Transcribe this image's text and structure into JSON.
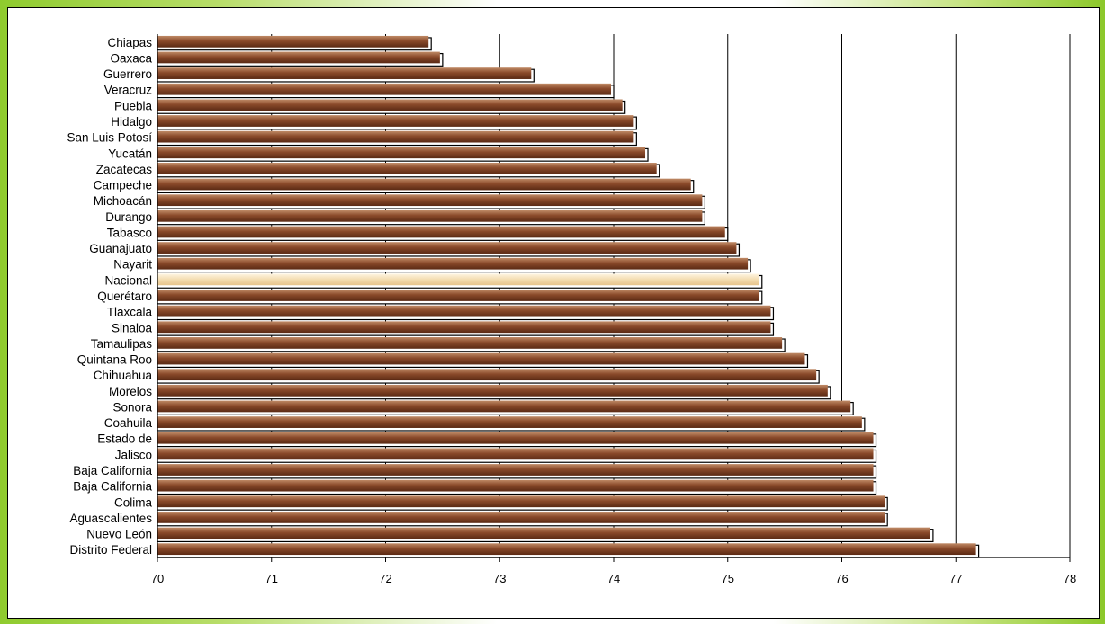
{
  "chart_data": {
    "type": "bar",
    "orientation": "horizontal",
    "title": "",
    "xlabel": "",
    "ylabel": "",
    "xlim": [
      70,
      78
    ],
    "xticks": [
      70,
      71,
      72,
      73,
      74,
      75,
      76,
      77,
      78
    ],
    "grid": "vertical",
    "legend": "none",
    "categories": [
      "Chiapas",
      "Oaxaca",
      "Guerrero",
      "Veracruz",
      "Puebla",
      "Hidalgo",
      "San Luis Potosí",
      "Yucatán",
      "Zacatecas",
      "Campeche",
      "Michoacán",
      "Durango",
      "Tabasco",
      "Guanajuato",
      "Nayarit",
      "Nacional",
      "Querétaro",
      "Tlaxcala",
      "Sinaloa",
      "Tamaulipas",
      "Quintana Roo",
      "Chihuahua",
      "Morelos",
      "Sonora",
      "Coahuila",
      "Estado de",
      "Jalisco",
      "Baja California",
      "Baja California",
      "Colima",
      "Aguascalientes",
      "Nuevo León",
      "Distrito Federal"
    ],
    "values": [
      72.4,
      72.5,
      73.3,
      74.0,
      74.1,
      74.2,
      74.2,
      74.3,
      74.4,
      74.7,
      74.8,
      74.8,
      75.0,
      75.1,
      75.2,
      75.3,
      75.3,
      75.4,
      75.4,
      75.5,
      75.7,
      75.8,
      75.9,
      76.1,
      76.2,
      76.3,
      76.3,
      76.3,
      76.3,
      76.4,
      76.4,
      76.8,
      77.2
    ],
    "highlight": "Nacional",
    "colors": {
      "bar": "#8a4a2a",
      "bar_dark": "#5a2a14",
      "bar_light": "#c08a66",
      "highlight": "#f3dcb0",
      "highlight_light": "#fff5e2",
      "grid": "#000000"
    }
  }
}
